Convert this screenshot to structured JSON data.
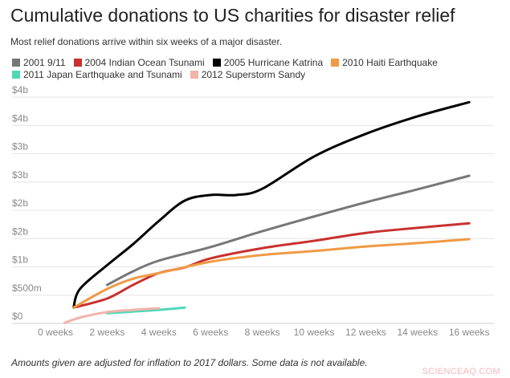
{
  "chart_data": {
    "type": "line",
    "title": "Cumulative donations to US charities for disaster relief",
    "subtitle": "Most relief donations arrive within six weeks of a major disaster.",
    "footnote": "Amounts given are adjusted for inflation to 2017 dollars. Some data is not available.",
    "watermark": "SCIENCEAQ.COM",
    "xlabel": "",
    "ylabel": "",
    "xlim": [
      -0.5,
      16.5
    ],
    "ylim": [
      0,
      4
    ],
    "grid": true,
    "legend_placement": "top",
    "x_ticks": [
      0,
      2,
      4,
      6,
      8,
      10,
      12,
      14,
      16
    ],
    "x_tick_labels": [
      "0 weeks",
      "2 weeks",
      "4 weeks",
      "6 weeks",
      "8 weeks",
      "10 weeks",
      "12 weeks",
      "14 weeks",
      "16 weeks"
    ],
    "y_ticks": [
      0,
      0.5,
      1,
      1.5,
      2,
      2.5,
      3,
      3.5,
      4
    ],
    "y_tick_labels": [
      "$0",
      "$500m",
      "$1b",
      "$2b",
      "$2b",
      "$3b",
      "$3b",
      "$4b",
      "$4b"
    ],
    "y_unit": "billions USD",
    "series": [
      {
        "name": "2001 9/11",
        "color": "#777777",
        "x": [
          2,
          3,
          4,
          6,
          8,
          10,
          12,
          14,
          16
        ],
        "y": [
          0.68,
          0.92,
          1.11,
          1.35,
          1.63,
          1.89,
          2.14,
          2.37,
          2.61
        ]
      },
      {
        "name": "2004 Indian Ocean Tsunami",
        "color": "#c8312f",
        "x": [
          0.7,
          2,
          3,
          4,
          5,
          6,
          8,
          10,
          12,
          14,
          16
        ],
        "y": [
          0.28,
          0.44,
          0.68,
          0.89,
          0.99,
          1.15,
          1.33,
          1.46,
          1.6,
          1.69,
          1.77
        ]
      },
      {
        "name": "2005 Hurricane Katrina",
        "color": "#000000",
        "x": [
          0.7,
          0.95,
          2,
          3,
          4,
          5,
          6,
          7,
          8,
          10,
          12,
          14,
          16
        ],
        "y": [
          0.28,
          0.61,
          1.03,
          1.4,
          1.81,
          2.17,
          2.27,
          2.27,
          2.38,
          2.95,
          3.35,
          3.66,
          3.91
        ]
      },
      {
        "name": "2010 Haiti Earthquake",
        "color": "#f09a45",
        "x": [
          0.7,
          2,
          3,
          4,
          6,
          8,
          10,
          12,
          14,
          16
        ],
        "y": [
          0.28,
          0.61,
          0.79,
          0.89,
          1.09,
          1.21,
          1.28,
          1.36,
          1.42,
          1.49
        ]
      },
      {
        "name": "2011 Japan Earthquake and Tsunami",
        "color": "#4fd8b8",
        "x": [
          2,
          3,
          4,
          5
        ],
        "y": [
          0.18,
          0.21,
          0.24,
          0.28
        ]
      },
      {
        "name": "2012 Superstorm Sandy",
        "color": "#f2b4aa",
        "x": [
          0.35,
          1,
          2,
          3,
          4
        ],
        "y": [
          0.01,
          0.11,
          0.2,
          0.24,
          0.27
        ]
      }
    ]
  }
}
